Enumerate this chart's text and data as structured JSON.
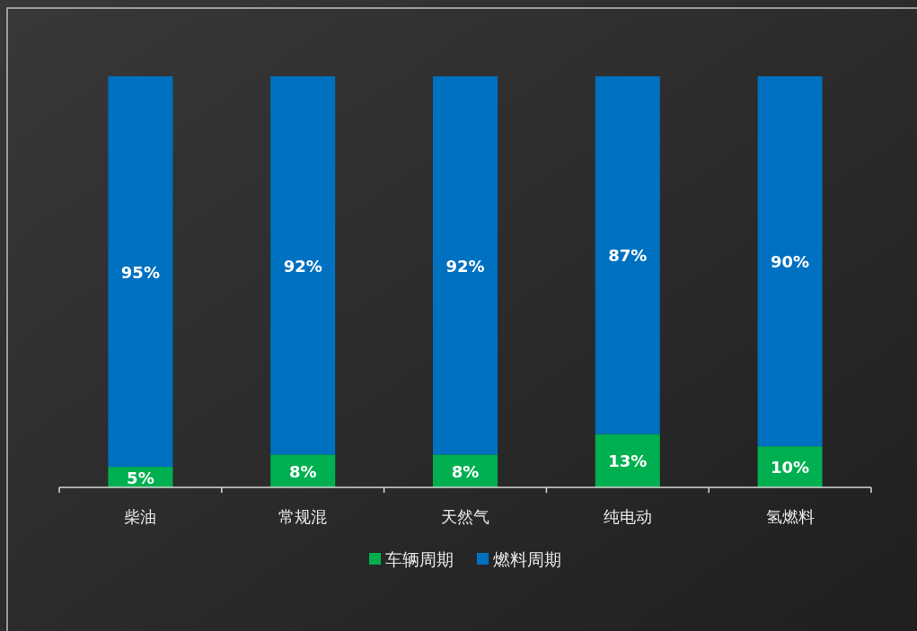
{
  "chart_data": {
    "type": "bar",
    "stacked": true,
    "legend": "bottom",
    "categories": [
      "柴油",
      "常规混",
      "天然气",
      "纯电动",
      "氢燃料"
    ],
    "series": [
      {
        "name": "车辆周期",
        "color": "#00b050",
        "values": [
          5,
          8,
          8,
          13,
          10
        ],
        "value_labels": [
          "5%",
          "8%",
          "8%",
          "13%",
          "10%"
        ]
      },
      {
        "name": "燃料周期",
        "color": "#0070c0",
        "values": [
          95,
          92,
          92,
          87,
          90
        ],
        "value_labels": [
          "95%",
          "92%",
          "92%",
          "87%",
          "90%"
        ]
      }
    ]
  }
}
